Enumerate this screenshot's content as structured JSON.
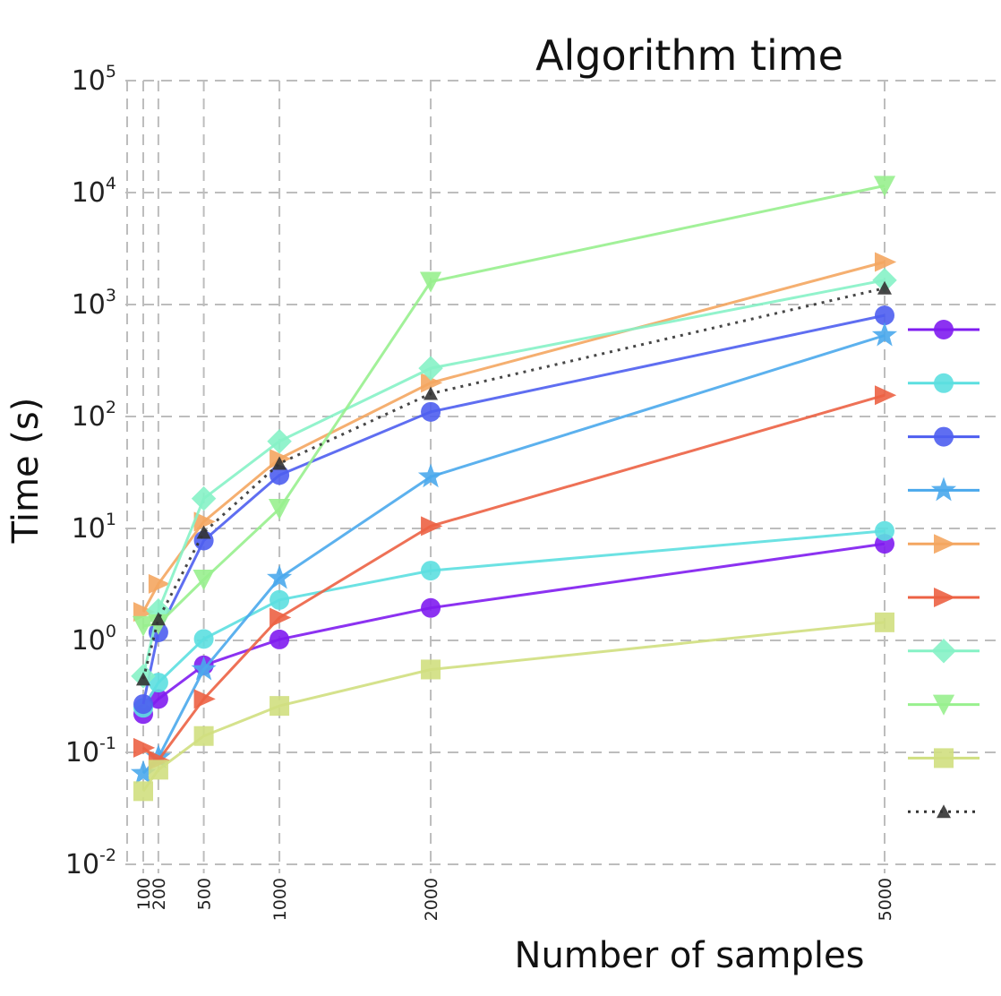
{
  "chart_data": {
    "type": "line",
    "title": "Algorithm time",
    "xlabel": "Number of samples",
    "ylabel": "Time (s)",
    "x": [
      100,
      200,
      500,
      1000,
      2000,
      5000
    ],
    "x_tick_labels": [
      "100",
      "200",
      "500",
      "1000",
      "2000",
      "5000"
    ],
    "y_scale": "log",
    "ylim": [
      0.01,
      100000
    ],
    "y_ticks": [
      {
        "base": "10",
        "exp": "5",
        "value": 100000
      },
      {
        "base": "10",
        "exp": "4",
        "value": 10000
      },
      {
        "base": "10",
        "exp": "3",
        "value": 1000
      },
      {
        "base": "10",
        "exp": "2",
        "value": 100
      },
      {
        "base": "10",
        "exp": "1",
        "value": 10
      },
      {
        "base": "10",
        "exp": "0",
        "value": 1
      },
      {
        "base": "10",
        "exp": "-1",
        "value": 0.1
      },
      {
        "base": "10",
        "exp": "-2",
        "value": 0.01
      }
    ],
    "grid": true,
    "legend_position": "right",
    "series": [
      {
        "color": "#7f1cf0",
        "marker": "circle",
        "line": "solid",
        "values": [
          0.22,
          0.3,
          0.6,
          1.02,
          1.95,
          7.3
        ]
      },
      {
        "color": "#5cdfe0",
        "marker": "circle",
        "line": "solid",
        "values": [
          0.25,
          0.42,
          1.03,
          2.3,
          4.2,
          9.5
        ]
      },
      {
        "color": "#4e5ef0",
        "marker": "circle",
        "line": "solid",
        "values": [
          0.27,
          1.18,
          7.8,
          30,
          110,
          800
        ]
      },
      {
        "color": "#4aa8ec",
        "marker": "star",
        "line": "solid",
        "values": [
          0.065,
          0.09,
          0.55,
          3.6,
          29,
          530
        ]
      },
      {
        "color": "#f4a660",
        "marker": "triangle-right",
        "line": "solid",
        "values": [
          1.8,
          3.2,
          11.5,
          42,
          200,
          2400
        ]
      },
      {
        "color": "#ec6244",
        "marker": "triangle-right",
        "line": "solid",
        "values": [
          0.11,
          0.085,
          0.3,
          1.6,
          10.5,
          155
        ]
      },
      {
        "color": "#86f2c6",
        "marker": "diamond",
        "line": "solid",
        "values": [
          0.48,
          1.85,
          18.5,
          60,
          270,
          1650
        ]
      },
      {
        "color": "#98f08e",
        "marker": "triangle-down",
        "line": "solid",
        "values": [
          1.35,
          1.4,
          3.5,
          15,
          1600,
          11500
        ]
      },
      {
        "color": "#d0df80",
        "marker": "square",
        "line": "solid",
        "values": [
          0.045,
          0.07,
          0.14,
          0.26,
          0.55,
          1.45
        ]
      },
      {
        "color": "#333333",
        "marker": "triangle-up",
        "line": "dotted",
        "values": [
          0.45,
          1.55,
          9.2,
          38,
          160,
          1400
        ]
      }
    ]
  }
}
